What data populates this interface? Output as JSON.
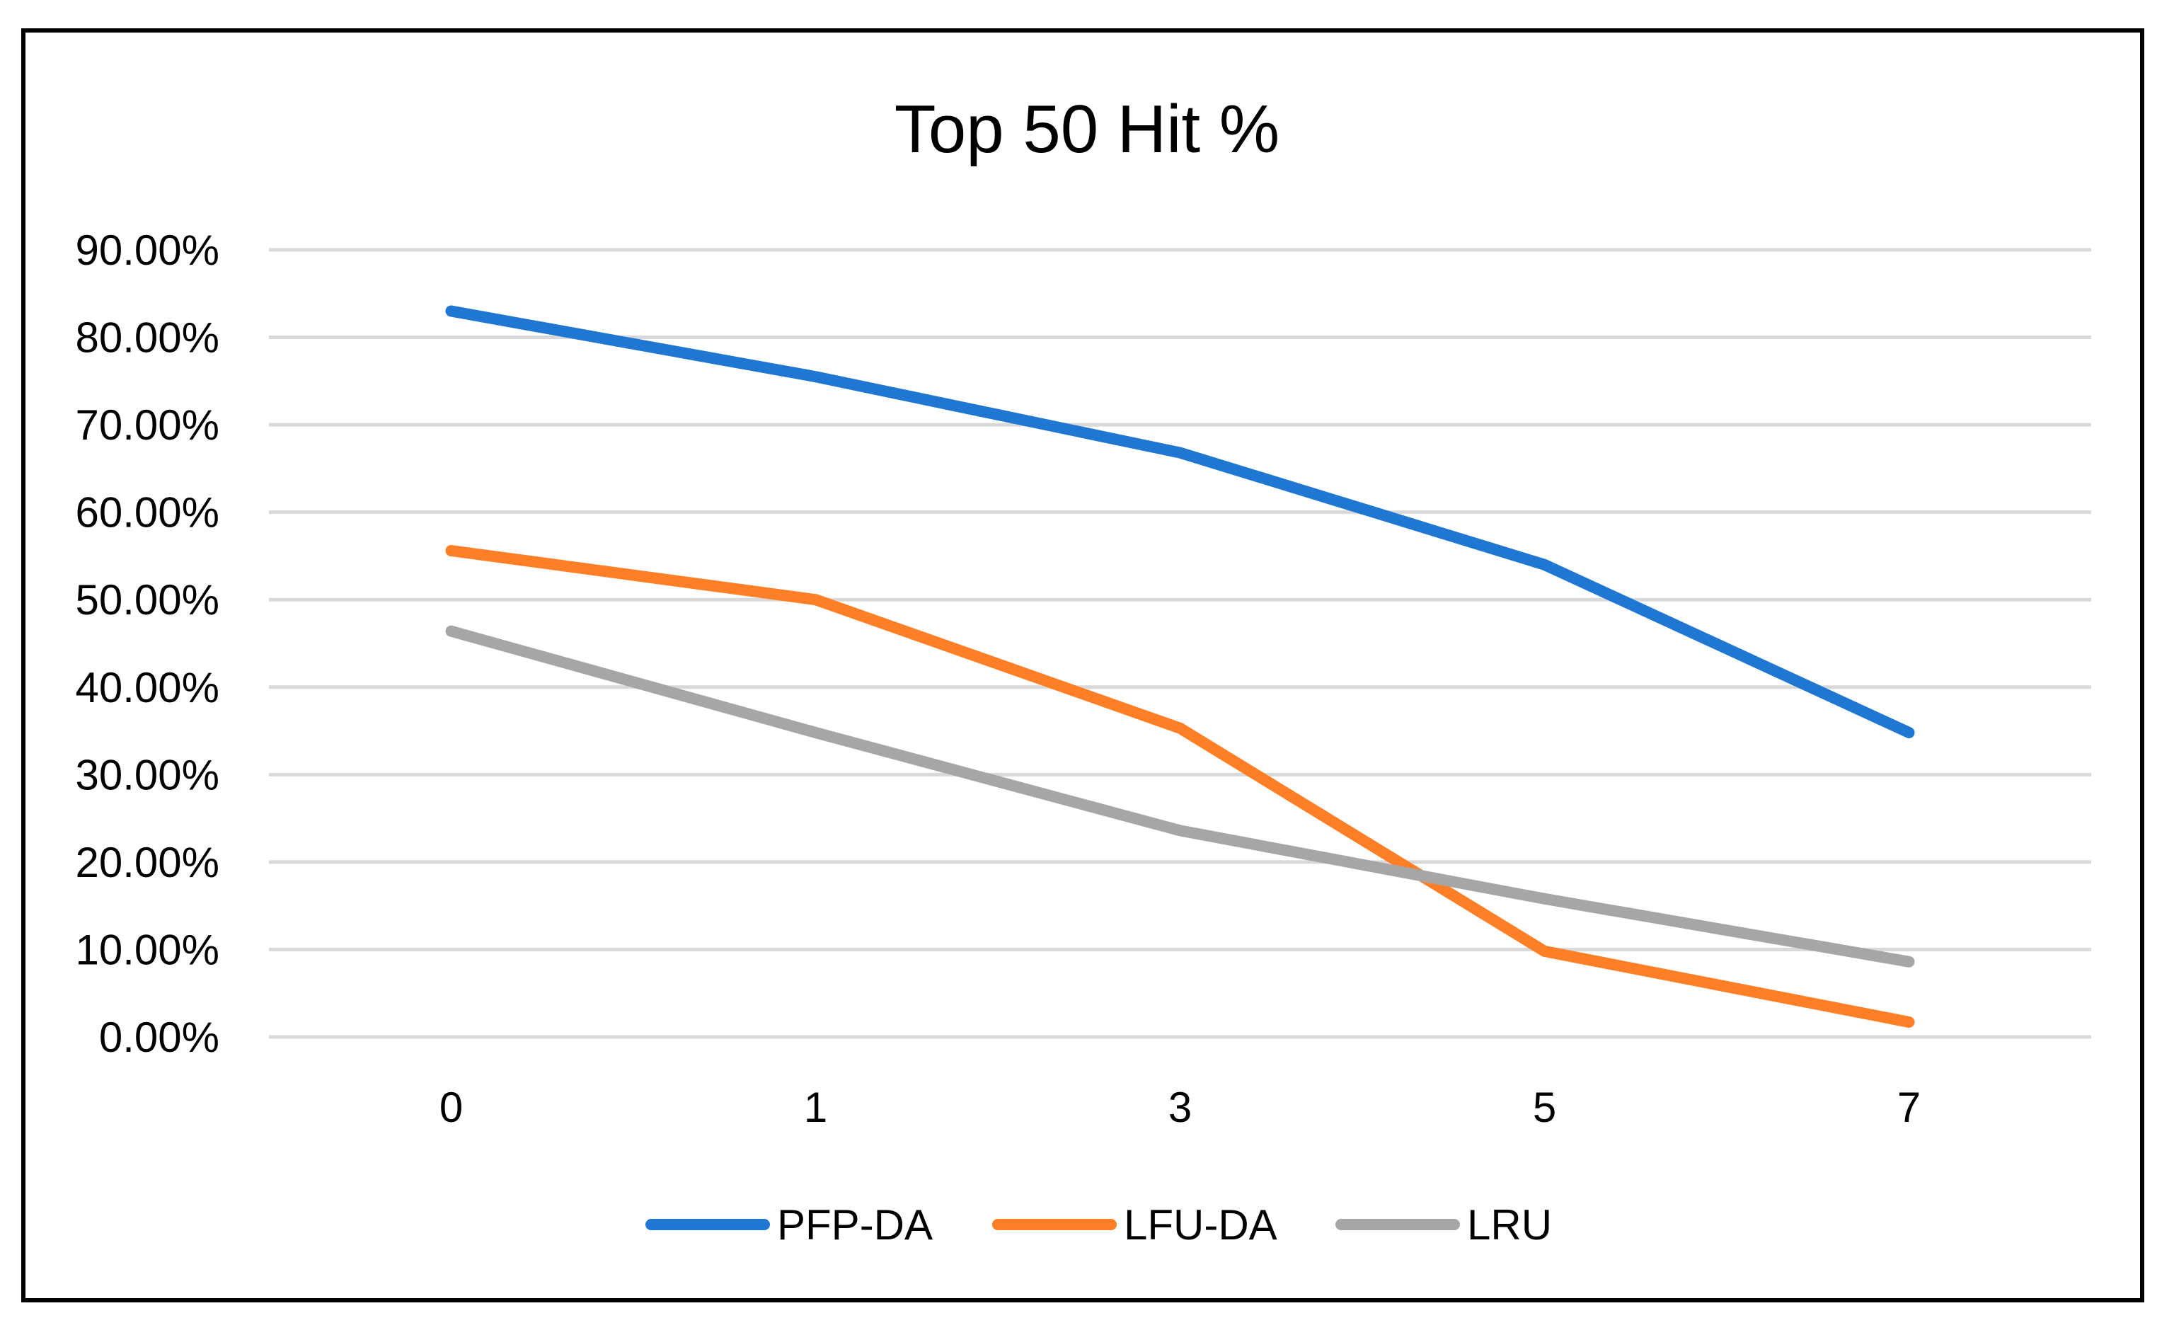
{
  "chart_data": {
    "type": "line",
    "title": "Top 50 Hit %",
    "xlabel": "",
    "ylabel": "",
    "categories": [
      "0",
      "1",
      "3",
      "5",
      "7"
    ],
    "y_ticks": [
      0,
      10,
      20,
      30,
      40,
      50,
      60,
      70,
      80,
      90
    ],
    "y_tick_labels": [
      "0.00%",
      "10.00%",
      "20.00%",
      "30.00%",
      "40.00%",
      "50.00%",
      "60.00%",
      "70.00%",
      "80.00%",
      "90.00%"
    ],
    "ylim": [
      0,
      90
    ],
    "grid": true,
    "legend_position": "bottom",
    "series": [
      {
        "name": "PFP-DA",
        "color": "#1f77d2",
        "values": [
          83.0,
          75.5,
          66.8,
          54.0,
          34.8
        ]
      },
      {
        "name": "LFU-DA",
        "color": "#ff7f27",
        "values": [
          55.6,
          50.0,
          35.3,
          9.8,
          1.7
        ]
      },
      {
        "name": "LRU",
        "color": "#a6a6a6",
        "values": [
          46.4,
          34.8,
          23.6,
          15.8,
          8.6
        ]
      }
    ]
  }
}
